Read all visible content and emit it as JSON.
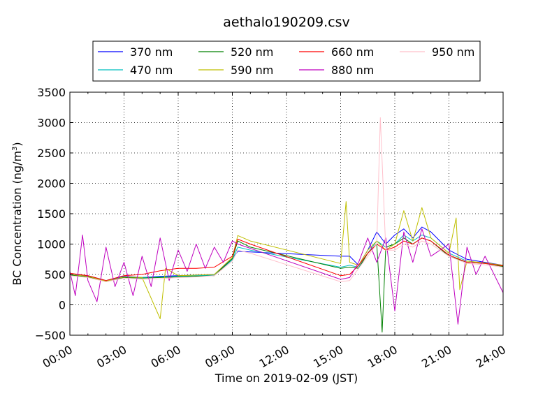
{
  "chart_data": {
    "type": "line",
    "title": "aethalo190209.csv",
    "xlabel": "Time on 2019-02-09 (JST)",
    "ylabel_main": "BC Concentration (ng/m",
    "ylabel_sup": "3",
    "ylabel_end": ")",
    "xlim": [
      0,
      24
    ],
    "ylim": [
      -500,
      3500
    ],
    "x_ticks": [
      0,
      3,
      6,
      9,
      12,
      15,
      18,
      21,
      24
    ],
    "x_tick_labels": [
      "00:00",
      "03:00",
      "06:00",
      "09:00",
      "12:00",
      "15:00",
      "18:00",
      "21:00",
      "24:00"
    ],
    "y_ticks": [
      -500,
      0,
      500,
      1000,
      1500,
      2000,
      2500,
      3000,
      3500
    ],
    "y_tick_labels": [
      "−500",
      "0",
      "500",
      "1000",
      "1500",
      "2000",
      "2500",
      "3000",
      "3500"
    ],
    "grid": true,
    "legend_position": "top",
    "x_unit": "hours of day",
    "series": [
      {
        "name": "370 nm",
        "color": "#0000ff",
        "values": [
          [
            0,
            500
          ],
          [
            1,
            480
          ],
          [
            2,
            400
          ],
          [
            3,
            470
          ],
          [
            4,
            450
          ],
          [
            5,
            470
          ],
          [
            6,
            480
          ],
          [
            7,
            490
          ],
          [
            8,
            500
          ],
          [
            9,
            760
          ],
          [
            9.3,
            880
          ],
          [
            10,
            870
          ],
          [
            15,
            800
          ],
          [
            15.5,
            800
          ],
          [
            16,
            650
          ],
          [
            16.5,
            900
          ],
          [
            17,
            1200
          ],
          [
            17.5,
            1000
          ],
          [
            18,
            1150
          ],
          [
            18.5,
            1250
          ],
          [
            19,
            1100
          ],
          [
            19.5,
            1280
          ],
          [
            20,
            1200
          ],
          [
            21,
            900
          ],
          [
            22,
            750
          ],
          [
            23,
            700
          ],
          [
            24,
            650
          ]
        ]
      },
      {
        "name": "470 nm",
        "color": "#00bfbf",
        "values": [
          [
            0,
            490
          ],
          [
            1,
            470
          ],
          [
            2,
            390
          ],
          [
            3,
            460
          ],
          [
            4,
            450
          ],
          [
            5,
            460
          ],
          [
            6,
            470
          ],
          [
            7,
            480
          ],
          [
            8,
            490
          ],
          [
            9,
            740
          ],
          [
            9.3,
            950
          ],
          [
            10,
            900
          ],
          [
            15,
            620
          ],
          [
            15.5,
            650
          ],
          [
            16,
            620
          ],
          [
            16.5,
            850
          ],
          [
            17,
            1050
          ],
          [
            17.5,
            950
          ],
          [
            18,
            1000
          ],
          [
            18.5,
            1150
          ],
          [
            19,
            1050
          ],
          [
            19.5,
            1150
          ],
          [
            20,
            1100
          ],
          [
            21,
            850
          ],
          [
            22,
            720
          ],
          [
            23,
            690
          ],
          [
            24,
            640
          ]
        ]
      },
      {
        "name": "520 nm",
        "color": "#008000",
        "values": [
          [
            0,
            490
          ],
          [
            1,
            460
          ],
          [
            2,
            380
          ],
          [
            3,
            450
          ],
          [
            4,
            440
          ],
          [
            5,
            450
          ],
          [
            6,
            460
          ],
          [
            7,
            470
          ],
          [
            8,
            480
          ],
          [
            9,
            760
          ],
          [
            9.3,
            1050
          ],
          [
            10,
            950
          ],
          [
            15,
            600
          ],
          [
            15.5,
            620
          ],
          [
            16,
            600
          ],
          [
            16.5,
            850
          ],
          [
            17,
            1000
          ],
          [
            17.3,
            -450
          ],
          [
            17.5,
            950
          ],
          [
            18,
            1000
          ],
          [
            18.5,
            1100
          ],
          [
            19,
            1000
          ],
          [
            19.5,
            1100
          ],
          [
            20,
            1050
          ],
          [
            21,
            800
          ],
          [
            22,
            700
          ],
          [
            23,
            680
          ],
          [
            24,
            630
          ]
        ]
      },
      {
        "name": "590 nm",
        "color": "#bfbf00",
        "values": [
          [
            0,
            500
          ],
          [
            1,
            470
          ],
          [
            2,
            390
          ],
          [
            3,
            460
          ],
          [
            4,
            450
          ],
          [
            5,
            -230
          ],
          [
            5.3,
            600
          ],
          [
            6,
            480
          ],
          [
            7,
            490
          ],
          [
            8,
            500
          ],
          [
            9,
            780
          ],
          [
            9.3,
            1140
          ],
          [
            10,
            1050
          ],
          [
            15,
            680
          ],
          [
            15.3,
            1700
          ],
          [
            15.5,
            700
          ],
          [
            16,
            650
          ],
          [
            16.5,
            900
          ],
          [
            17,
            1050
          ],
          [
            17.5,
            900
          ],
          [
            18,
            1000
          ],
          [
            18.5,
            1550
          ],
          [
            19,
            1050
          ],
          [
            19.5,
            1600
          ],
          [
            20,
            1100
          ],
          [
            21,
            850
          ],
          [
            21.4,
            1430
          ],
          [
            21.6,
            250
          ],
          [
            22,
            720
          ],
          [
            23,
            690
          ],
          [
            24,
            650
          ]
        ]
      },
      {
        "name": "660 nm",
        "color": "#ff0000",
        "values": [
          [
            0,
            520
          ],
          [
            1,
            480
          ],
          [
            2,
            400
          ],
          [
            3,
            480
          ],
          [
            4,
            500
          ],
          [
            5,
            560
          ],
          [
            6,
            600
          ],
          [
            7,
            600
          ],
          [
            8,
            620
          ],
          [
            9,
            800
          ],
          [
            9.3,
            1080
          ],
          [
            10,
            1000
          ],
          [
            15,
            480
          ],
          [
            15.5,
            500
          ],
          [
            16,
            650
          ],
          [
            16.5,
            850
          ],
          [
            17,
            1000
          ],
          [
            17.5,
            900
          ],
          [
            18,
            950
          ],
          [
            18.5,
            1050
          ],
          [
            19,
            1000
          ],
          [
            19.5,
            1100
          ],
          [
            20,
            1050
          ],
          [
            21,
            820
          ],
          [
            22,
            700
          ],
          [
            23,
            680
          ],
          [
            24,
            640
          ]
        ]
      },
      {
        "name": "880 nm",
        "color": "#bf00bf",
        "values": [
          [
            0,
            550
          ],
          [
            0.3,
            150
          ],
          [
            0.7,
            1150
          ],
          [
            1,
            400
          ],
          [
            1.5,
            50
          ],
          [
            2,
            950
          ],
          [
            2.5,
            300
          ],
          [
            3,
            700
          ],
          [
            3.5,
            150
          ],
          [
            4,
            800
          ],
          [
            4.5,
            300
          ],
          [
            5,
            1100
          ],
          [
            5.5,
            400
          ],
          [
            6,
            900
          ],
          [
            6.5,
            550
          ],
          [
            7,
            1000
          ],
          [
            7.5,
            600
          ],
          [
            8,
            950
          ],
          [
            8.5,
            700
          ],
          [
            9,
            1050
          ],
          [
            9.3,
            1000
          ],
          [
            10,
            930
          ],
          [
            15,
            420
          ],
          [
            15.5,
            450
          ],
          [
            16,
            700
          ],
          [
            16.5,
            1100
          ],
          [
            17,
            700
          ],
          [
            17.5,
            1100
          ],
          [
            18,
            -100
          ],
          [
            18.5,
            1200
          ],
          [
            19,
            700
          ],
          [
            19.5,
            1250
          ],
          [
            20,
            800
          ],
          [
            21,
            1000
          ],
          [
            21.5,
            -320
          ],
          [
            22,
            950
          ],
          [
            22.5,
            500
          ],
          [
            23,
            800
          ],
          [
            24,
            200
          ]
        ]
      },
      {
        "name": "950 nm",
        "color": "#ffc0cb",
        "values": [
          [
            0,
            480
          ],
          [
            1,
            450
          ],
          [
            2,
            380
          ],
          [
            3,
            440
          ],
          [
            4,
            420
          ],
          [
            5,
            430
          ],
          [
            6,
            450
          ],
          [
            7,
            460
          ],
          [
            8,
            480
          ],
          [
            9,
            720
          ],
          [
            9.3,
            900
          ],
          [
            10,
            850
          ],
          [
            15,
            380
          ],
          [
            15.5,
            400
          ],
          [
            16,
            600
          ],
          [
            16.5,
            800
          ],
          [
            17,
            1000
          ],
          [
            17.2,
            3080
          ],
          [
            17.5,
            900
          ],
          [
            18,
            900
          ],
          [
            18.5,
            1000
          ],
          [
            19,
            950
          ],
          [
            19.5,
            1050
          ],
          [
            20,
            1000
          ],
          [
            21,
            800
          ],
          [
            22,
            680
          ],
          [
            23,
            660
          ],
          [
            24,
            620
          ]
        ]
      }
    ]
  }
}
